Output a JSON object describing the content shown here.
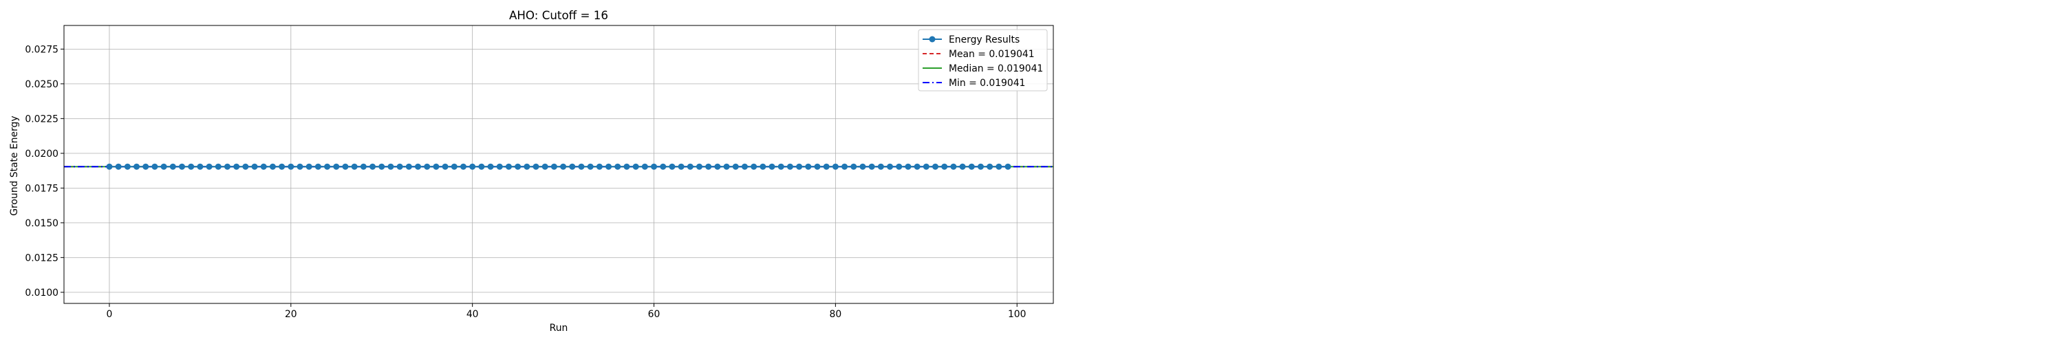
{
  "chart_data": {
    "type": "line",
    "title": "AHO: Cutoff = 16",
    "xlabel": "Run",
    "ylabel": "Ground State Energy",
    "xlim": [
      -5,
      104
    ],
    "ylim": [
      0.0092,
      0.0292
    ],
    "xticks": [
      0,
      20,
      40,
      60,
      80,
      100
    ],
    "xtick_labels": [
      "0",
      "20",
      "40",
      "60",
      "80",
      "100"
    ],
    "yticks": [
      0.01,
      0.0125,
      0.015,
      0.0175,
      0.02,
      0.0225,
      0.025,
      0.0275
    ],
    "ytick_labels": [
      "0.0100",
      "0.0125",
      "0.0150",
      "0.0175",
      "0.0200",
      "0.0225",
      "0.0250",
      "0.0275"
    ],
    "grid": true,
    "legend_position": "top-right",
    "series": [
      {
        "name": "Energy Results",
        "style": "line-with-circle-markers",
        "color": "#1f77b4",
        "x": [
          0,
          1,
          2,
          3,
          4,
          5,
          6,
          7,
          8,
          9,
          10,
          11,
          12,
          13,
          14,
          15,
          16,
          17,
          18,
          19,
          20,
          21,
          22,
          23,
          24,
          25,
          26,
          27,
          28,
          29,
          30,
          31,
          32,
          33,
          34,
          35,
          36,
          37,
          38,
          39,
          40,
          41,
          42,
          43,
          44,
          45,
          46,
          47,
          48,
          49,
          50,
          51,
          52,
          53,
          54,
          55,
          56,
          57,
          58,
          59,
          60,
          61,
          62,
          63,
          64,
          65,
          66,
          67,
          68,
          69,
          70,
          71,
          72,
          73,
          74,
          75,
          76,
          77,
          78,
          79,
          80,
          81,
          82,
          83,
          84,
          85,
          86,
          87,
          88,
          89,
          90,
          91,
          92,
          93,
          94,
          95,
          96,
          97,
          98,
          99
        ],
        "y": [
          0.019041,
          0.019041,
          0.019041,
          0.019041,
          0.019041,
          0.019041,
          0.019041,
          0.019041,
          0.019041,
          0.019041,
          0.019041,
          0.019041,
          0.019041,
          0.019041,
          0.019041,
          0.019041,
          0.019041,
          0.019041,
          0.019041,
          0.019041,
          0.019041,
          0.019041,
          0.019041,
          0.019041,
          0.019041,
          0.019041,
          0.019041,
          0.019041,
          0.019041,
          0.019041,
          0.019041,
          0.019041,
          0.019041,
          0.019041,
          0.019041,
          0.019041,
          0.019041,
          0.019041,
          0.019041,
          0.019041,
          0.019041,
          0.019041,
          0.019041,
          0.019041,
          0.019041,
          0.019041,
          0.019041,
          0.019041,
          0.019041,
          0.019041,
          0.019041,
          0.019041,
          0.019041,
          0.019041,
          0.019041,
          0.019041,
          0.019041,
          0.019041,
          0.019041,
          0.019041,
          0.019041,
          0.019041,
          0.019041,
          0.019041,
          0.019041,
          0.019041,
          0.019041,
          0.019041,
          0.019041,
          0.019041,
          0.019041,
          0.019041,
          0.019041,
          0.019041,
          0.019041,
          0.019041,
          0.019041,
          0.019041,
          0.019041,
          0.019041,
          0.019041,
          0.019041,
          0.019041,
          0.019041,
          0.019041,
          0.019041,
          0.019041,
          0.019041,
          0.019041,
          0.019041,
          0.019041,
          0.019041,
          0.019041,
          0.019041,
          0.019041,
          0.019041,
          0.019041,
          0.019041,
          0.019041,
          0.019041
        ]
      },
      {
        "name": "Mean = 0.019041",
        "style": "dashed-hline",
        "color": "#d62728",
        "value": 0.019041
      },
      {
        "name": "Median = 0.019041",
        "style": "solid-hline",
        "color": "#2ca02c",
        "value": 0.019041
      },
      {
        "name": "Min = 0.019041",
        "style": "dashdot-hline",
        "color": "#0000ff",
        "value": 0.019041
      }
    ]
  }
}
